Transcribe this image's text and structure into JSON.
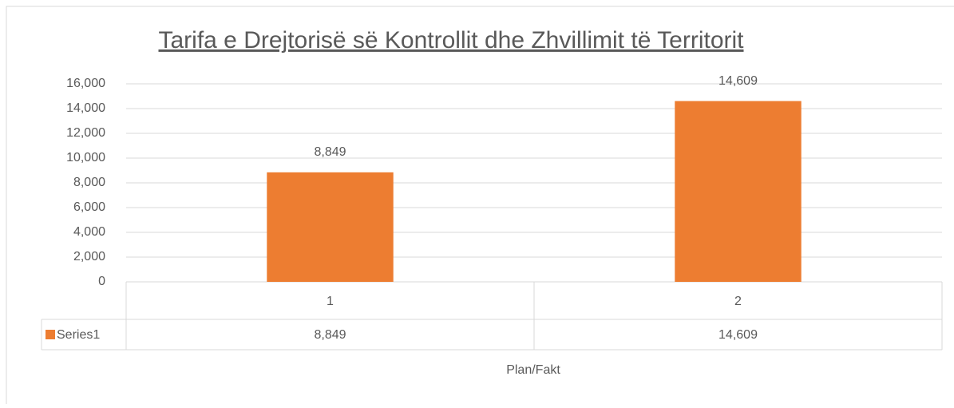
{
  "chart_data": {
    "type": "bar",
    "title": "Tarifa e Drejtorisë së Kontrollit dhe Zhvillimit të Territorit",
    "x_label": "Plan/Fakt",
    "categories": [
      "1",
      "2"
    ],
    "series": [
      {
        "name": "Series1",
        "color": "#ed7d31",
        "values": [
          8849,
          14609
        ],
        "value_labels": [
          "8,849",
          "14,609"
        ]
      }
    ],
    "ylim": [
      0,
      16000
    ],
    "yticks": [
      0,
      {
        "value": 2000,
        "label": "2,000"
      },
      {
        "value": 4000,
        "label": "4,000"
      },
      {
        "value": 6000,
        "label": "6,000"
      },
      {
        "value": 8000,
        "label": "8,000"
      },
      {
        "value": 10000,
        "label": "10,000"
      },
      {
        "value": 12000,
        "label": "12,000"
      },
      {
        "value": 14000,
        "label": "14,000"
      },
      {
        "value": 16000,
        "label": "16,000"
      }
    ],
    "grid": true,
    "data_table": true
  }
}
